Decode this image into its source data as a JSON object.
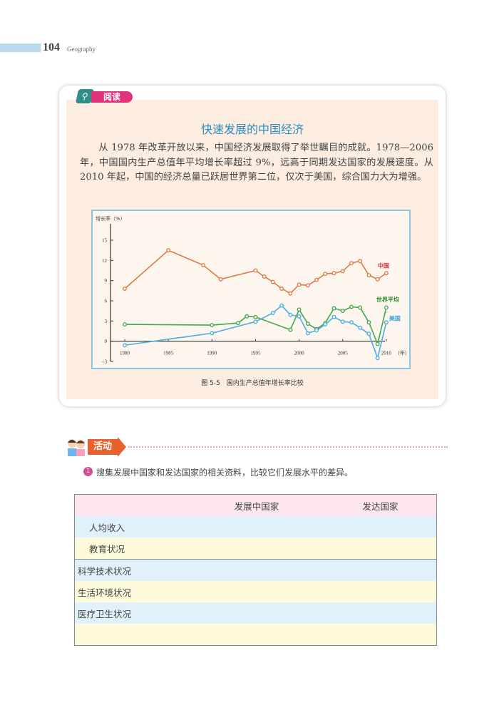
{
  "header": {
    "page_number": "104",
    "subject": "Geography"
  },
  "reading": {
    "badge": "阅读",
    "title": "快速发展的中国经济",
    "paragraph": "从 1978 年改革开放以来，中国经济发展取得了举世瞩目的成就。1978—2006 年，中国国内生产总值年平均增长率超过 9%，远高于同期发达国家的发展速度。从 2010 年起，中国的经济总量已跃居世界第二位，仅次于美国，综合国力大为增强。",
    "caption": "图 5-5　国内生产总值年增长率比较"
  },
  "chart_data": {
    "type": "line",
    "title": "",
    "ylabel": "增长率（%）",
    "xlabel": "（年）",
    "xlim": [
      1980,
      2010
    ],
    "ylim": [
      -3,
      17
    ],
    "xticks": [
      "1980",
      "1985",
      "1990",
      "1995",
      "2000",
      "2005",
      "2010"
    ],
    "yticks": [
      "-3",
      "0",
      "3",
      "6",
      "9",
      "12",
      "15"
    ],
    "grid": false,
    "series": [
      {
        "name": "中国",
        "color": "#e07848",
        "label_color": "#d0304a",
        "x": [
          1980,
          1985,
          1989,
          1991,
          1995,
          1996,
          1997,
          1998,
          1999,
          2000,
          2001,
          2002,
          2003,
          2004,
          2005,
          2006,
          2007,
          2008,
          2009,
          2010
        ],
        "y": [
          7.8,
          13.5,
          11.3,
          9.2,
          10.5,
          9.6,
          8.8,
          7.8,
          7.1,
          8.4,
          8.3,
          9.1,
          10.0,
          10.1,
          10.4,
          11.6,
          11.9,
          9.8,
          9.2,
          10.1
        ]
      },
      {
        "name": "世界平均",
        "color": "#3fa850",
        "label_color": "#2f8a30",
        "x": [
          1980,
          1990,
          1993,
          1994,
          1995,
          1999,
          2000,
          2001,
          2002,
          2003,
          2004,
          2005,
          2006,
          2007,
          2008,
          2009,
          2010
        ],
        "y": [
          2.5,
          2.4,
          2.7,
          3.7,
          3.6,
          1.7,
          4.7,
          2.6,
          1.8,
          2.7,
          4.9,
          4.5,
          5.1,
          5.0,
          2.8,
          -0.4,
          5.0
        ]
      },
      {
        "name": "美国",
        "color": "#4aaee0",
        "label_color": "#3aa0d8",
        "x": [
          1980,
          1990,
          1995,
          1997,
          1998,
          1999,
          2000,
          2001,
          2002,
          2003,
          2004,
          2005,
          2006,
          2007,
          2008,
          2009,
          2010
        ],
        "y": [
          -0.6,
          1.2,
          2.9,
          4.2,
          5.3,
          3.9,
          3.7,
          1.2,
          1.6,
          2.5,
          3.6,
          2.9,
          2.8,
          2.0,
          1.1,
          -2.5,
          2.8
        ]
      }
    ]
  },
  "activity": {
    "label": "活动",
    "question_number": "1",
    "question": "搜集发展中国家和发达国家的相关资料，比较它们发展水平的差异。",
    "table": {
      "headers": [
        "",
        "发展中国家",
        "发达国家"
      ],
      "rows": [
        "人均收入",
        "教育状况",
        "科学技术状况",
        "生活环境状况",
        "医疗卫生状况",
        ""
      ]
    }
  }
}
